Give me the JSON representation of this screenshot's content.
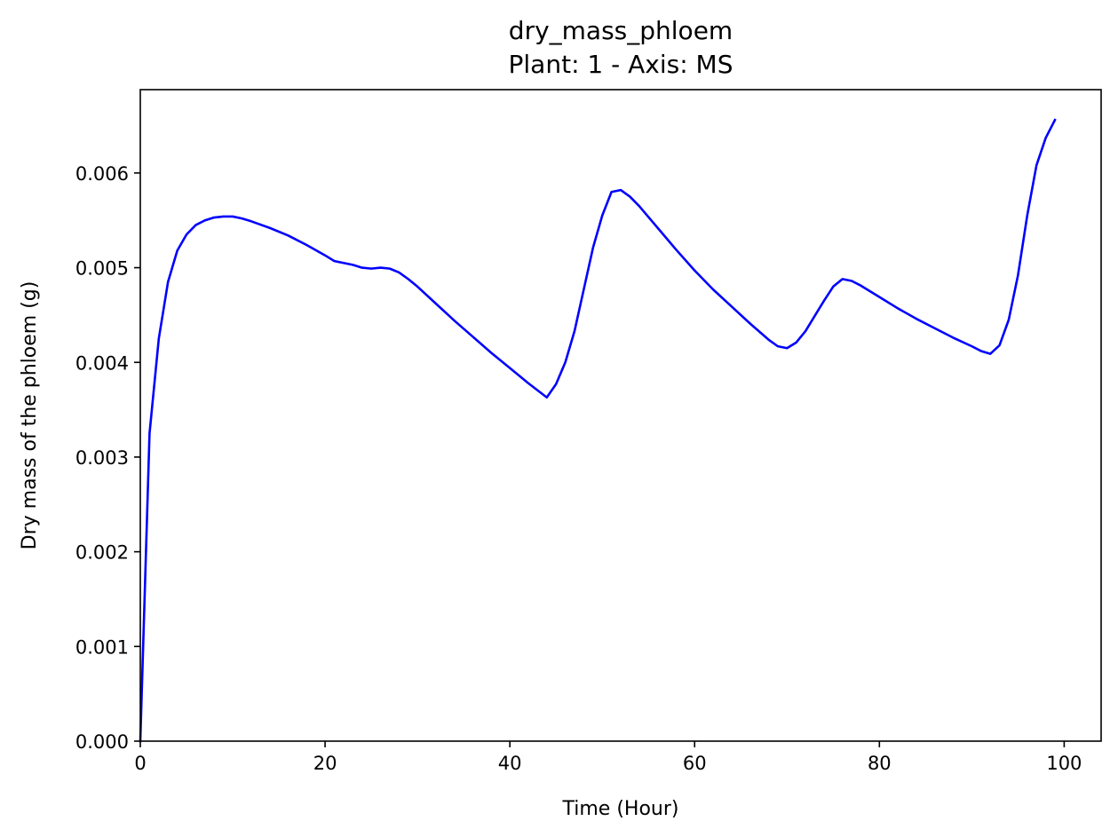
{
  "chart_data": {
    "type": "line",
    "title": "dry_mass_phloem",
    "subtitle": "Plant: 1 - Axis: MS",
    "xlabel": "Time (Hour)",
    "ylabel": "Dry mass of the phloem (g)",
    "xlim": [
      0,
      104
    ],
    "ylim": [
      0,
      0.00688
    ],
    "xticks": [
      0,
      20,
      40,
      60,
      80,
      100
    ],
    "xtick_labels": [
      "0",
      "20",
      "40",
      "60",
      "80",
      "100"
    ],
    "yticks": [
      0,
      0.001,
      0.002,
      0.003,
      0.004,
      0.005,
      0.006
    ],
    "ytick_labels": [
      "0.000",
      "0.001",
      "0.002",
      "0.003",
      "0.004",
      "0.005",
      "0.006"
    ],
    "grid": false,
    "line_color": "#0000ff",
    "series": [
      {
        "x": [
          0,
          1,
          2,
          3,
          4,
          5,
          6,
          7,
          8,
          9,
          10,
          11,
          12,
          14,
          16,
          18,
          20,
          21,
          22,
          23,
          24,
          25,
          26,
          27,
          28,
          29,
          30,
          32,
          34,
          36,
          38,
          40,
          42,
          44,
          45,
          46,
          47,
          48,
          49,
          50,
          51,
          52,
          53,
          54,
          56,
          58,
          60,
          62,
          64,
          66,
          68,
          69,
          70,
          71,
          72,
          73,
          74,
          75,
          76,
          77,
          78,
          80,
          82,
          84,
          86,
          88,
          90,
          91,
          92,
          93,
          94,
          95,
          96,
          97,
          98,
          99
        ],
        "y": [
          0.0,
          0.00325,
          0.00425,
          0.00485,
          0.00518,
          0.00535,
          0.00545,
          0.0055,
          0.00553,
          0.00554,
          0.00554,
          0.00552,
          0.00549,
          0.00542,
          0.00534,
          0.00524,
          0.00513,
          0.00507,
          0.00505,
          0.00503,
          0.005,
          0.00499,
          0.005,
          0.00499,
          0.00495,
          0.00488,
          0.0048,
          0.00462,
          0.00444,
          0.00427,
          0.0041,
          0.00394,
          0.00378,
          0.00363,
          0.00377,
          0.004,
          0.00433,
          0.00477,
          0.00521,
          0.00555,
          0.0058,
          0.00582,
          0.00575,
          0.00565,
          0.00542,
          0.00519,
          0.00497,
          0.00477,
          0.00459,
          0.00441,
          0.00424,
          0.00417,
          0.00415,
          0.00421,
          0.00433,
          0.00449,
          0.00465,
          0.0048,
          0.00488,
          0.00486,
          0.00481,
          0.00469,
          0.00457,
          0.00446,
          0.00436,
          0.00426,
          0.00417,
          0.00412,
          0.00409,
          0.00418,
          0.00445,
          0.00492,
          0.00555,
          0.00608,
          0.00637,
          0.00656
        ]
      }
    ]
  }
}
